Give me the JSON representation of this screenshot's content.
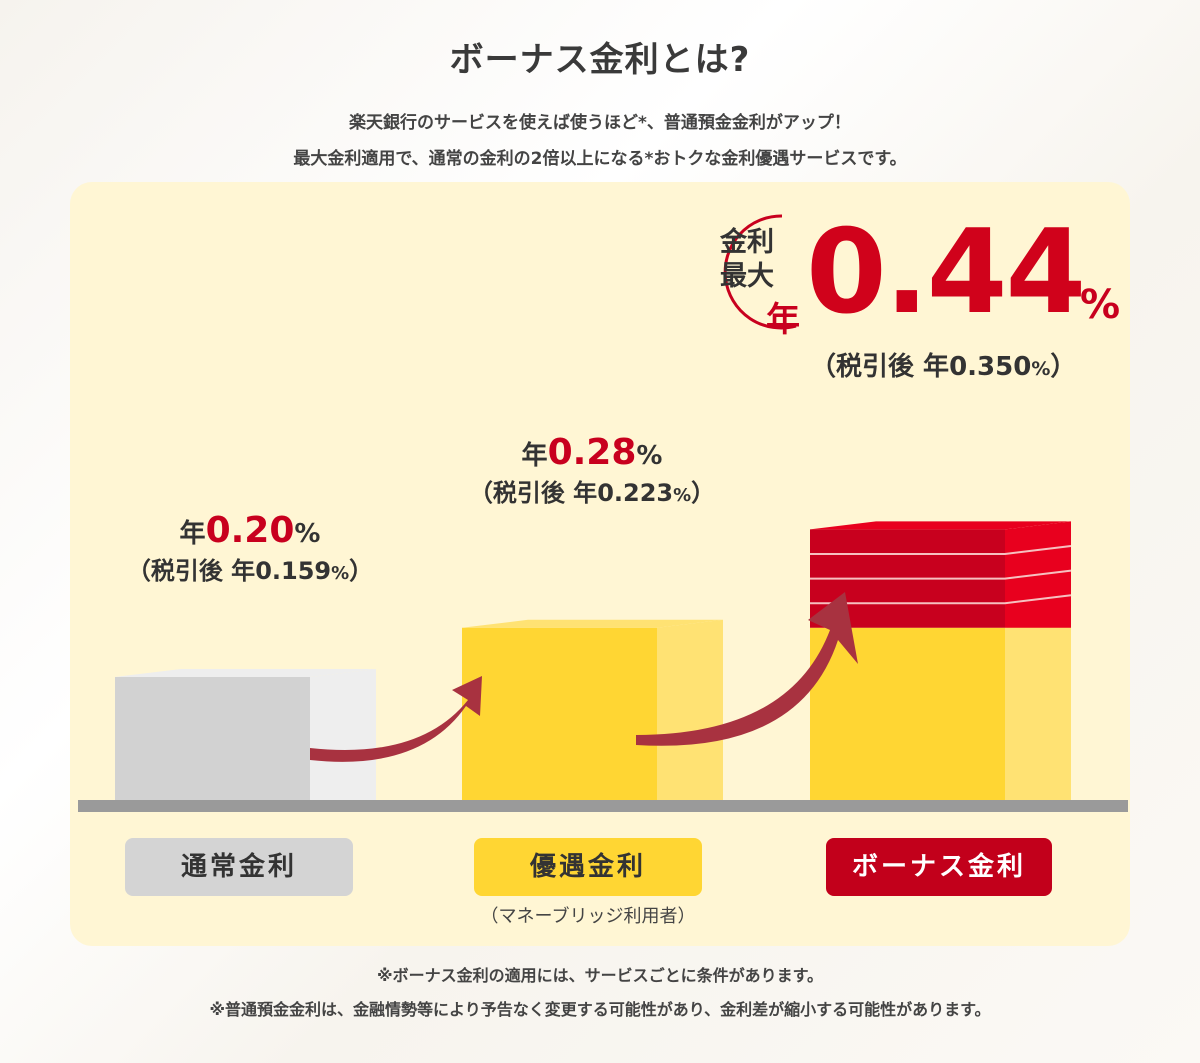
{
  "header": {
    "title": "ボーナス金利とは?",
    "lead1": "楽天銀行のサービスを使えば使うほど*、普通預金金利がアップ！",
    "lead2": "最大金利適用で、通常の金利の2倍以上になる*おトクな金利優遇サービスです。"
  },
  "labels": {
    "nen": "年",
    "pct": "%",
    "open_paren": "（税引後 年",
    "close_paren": "）"
  },
  "bonus_badge": {
    "line1": "金利",
    "line2": "最大",
    "nen": "年",
    "rate": "0.44",
    "pct": "%",
    "after_tax": "0.350"
  },
  "chart_data": {
    "type": "bar",
    "categories": [
      "通常金利",
      "優遇金利",
      "ボーナス金利"
    ],
    "series": [
      {
        "values": [
          0.2,
          0.28,
          0.44
        ]
      }
    ],
    "after_tax_values": [
      0.159,
      0.223,
      0.35
    ],
    "value_labels": [
      "0.20",
      "0.28",
      "0.44"
    ],
    "after_tax_labels": [
      "0.159",
      "0.223",
      "0.350"
    ],
    "category_note": "（マネーブリッジ利用者）",
    "colors": {
      "normal": "#d2d2d2",
      "preferred": "#ffd633",
      "bonus": "#d0021b",
      "arrow": "#a83240",
      "floor": "#9a9a9a"
    }
  },
  "footnotes": {
    "f1": "※ボーナス金利の適用には、サービスごとに条件があります。",
    "f2": "※普通預金金利は、金融情勢等により予告なく変更する可能性があり、金利差が縮小する可能性があります。"
  }
}
